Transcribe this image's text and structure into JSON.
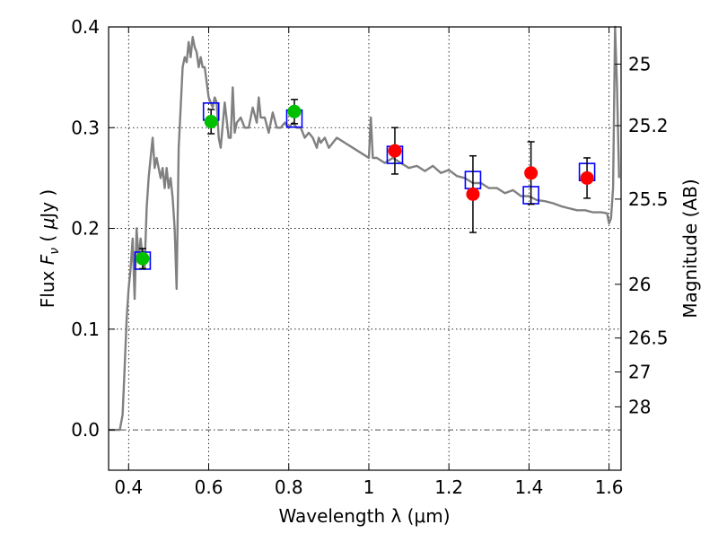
{
  "chart_data": {
    "type": "scatter",
    "xlabel": "Wavelength  λ (μm)",
    "ylabel": "Flux  F_ν  ( μJy )",
    "ylabel_parts": {
      "prefix": "Flux ",
      "var": "F",
      "sub": "ν",
      "mid": "  ( ",
      "mu": "μ",
      "suffix": "Jy )"
    },
    "y2label": "Magnitude (AB)",
    "xlim": [
      0.35,
      1.63
    ],
    "ylim": [
      -0.04,
      0.4
    ],
    "xticks": [
      0.4,
      0.6,
      0.8,
      1.0,
      1.2,
      1.4,
      1.6
    ],
    "xtick_labels": [
      "0.4",
      "0.6",
      "0.8",
      "1",
      "1.2",
      "1.4",
      "1.6"
    ],
    "yticks": [
      0.0,
      0.1,
      0.2,
      0.3,
      0.4
    ],
    "ytick_labels": [
      "0.0",
      "0.1",
      "0.2",
      "0.3",
      "0.4"
    ],
    "mag_ticks": [
      25,
      25.2,
      25.5,
      26,
      26.5,
      27,
      28
    ],
    "mag_tick_labels": [
      "25",
      "25.2",
      "25.5",
      "26",
      "26.5",
      "27",
      "28"
    ],
    "grid": true,
    "zero_line": true,
    "colors": {
      "model": "#808080",
      "green": "#00c000",
      "red": "#ff0000",
      "square": "#0000ff",
      "errorbar": "#000000"
    },
    "series": [
      {
        "marker": "square",
        "color": "#0000ff",
        "x": [
          0.435,
          0.606,
          0.814,
          1.065,
          1.26,
          1.405,
          1.545
        ],
        "y": [
          0.168,
          0.316,
          0.309,
          0.273,
          0.248,
          0.233,
          0.256
        ]
      },
      {
        "marker": "circle",
        "color": "#00c000",
        "x": [
          0.435,
          0.606,
          0.814
        ],
        "y": [
          0.17,
          0.306,
          0.316
        ],
        "yerr": [
          0.01,
          0.012,
          0.012
        ]
      },
      {
        "marker": "circle",
        "color": "#ff0000",
        "x": [
          1.065,
          1.26,
          1.405,
          1.545
        ],
        "y": [
          0.277,
          0.234,
          0.255,
          0.25
        ],
        "yerr": [
          0.023,
          0.038,
          0.031,
          0.02
        ]
      },
      {
        "type": "line",
        "color": "#808080",
        "x": [
          0.35,
          0.378,
          0.385,
          0.39,
          0.395,
          0.4,
          0.405,
          0.41,
          0.415,
          0.42,
          0.425,
          0.43,
          0.435,
          0.44,
          0.445,
          0.45,
          0.455,
          0.46,
          0.465,
          0.47,
          0.48,
          0.485,
          0.49,
          0.495,
          0.5,
          0.505,
          0.51,
          0.515,
          0.52,
          0.525,
          0.535,
          0.54,
          0.545,
          0.55,
          0.555,
          0.56,
          0.565,
          0.57,
          0.575,
          0.58,
          0.585,
          0.59,
          0.6,
          0.61,
          0.615,
          0.62,
          0.625,
          0.63,
          0.64,
          0.65,
          0.655,
          0.66,
          0.665,
          0.67,
          0.68,
          0.69,
          0.7,
          0.71,
          0.72,
          0.725,
          0.73,
          0.74,
          0.75,
          0.76,
          0.77,
          0.78,
          0.79,
          0.8,
          0.81,
          0.82,
          0.83,
          0.84,
          0.85,
          0.86,
          0.87,
          0.875,
          0.88,
          0.89,
          0.9,
          0.92,
          0.94,
          0.96,
          0.98,
          1.0,
          1.005,
          1.01,
          1.02,
          1.04,
          1.06,
          1.08,
          1.1,
          1.12,
          1.14,
          1.16,
          1.18,
          1.2,
          1.22,
          1.24,
          1.26,
          1.28,
          1.3,
          1.32,
          1.34,
          1.36,
          1.38,
          1.4,
          1.42,
          1.44,
          1.46,
          1.48,
          1.5,
          1.52,
          1.54,
          1.56,
          1.58,
          1.595,
          1.6,
          1.605,
          1.61,
          1.615,
          1.62,
          1.625
        ],
        "y": [
          0.0,
          0.0,
          0.015,
          0.06,
          0.11,
          0.14,
          0.16,
          0.19,
          0.13,
          0.2,
          0.17,
          0.19,
          0.17,
          0.16,
          0.22,
          0.25,
          0.27,
          0.29,
          0.26,
          0.27,
          0.25,
          0.26,
          0.24,
          0.26,
          0.24,
          0.25,
          0.23,
          0.2,
          0.14,
          0.28,
          0.36,
          0.37,
          0.365,
          0.385,
          0.37,
          0.39,
          0.38,
          0.375,
          0.36,
          0.37,
          0.36,
          0.36,
          0.33,
          0.32,
          0.33,
          0.325,
          0.29,
          0.28,
          0.325,
          0.29,
          0.29,
          0.34,
          0.295,
          0.305,
          0.31,
          0.3,
          0.3,
          0.32,
          0.305,
          0.33,
          0.31,
          0.31,
          0.295,
          0.315,
          0.3,
          0.3,
          0.305,
          0.3,
          0.305,
          0.3,
          0.3,
          0.29,
          0.295,
          0.29,
          0.28,
          0.29,
          0.285,
          0.29,
          0.28,
          0.29,
          0.285,
          0.28,
          0.275,
          0.27,
          0.31,
          0.27,
          0.27,
          0.265,
          0.27,
          0.265,
          0.26,
          0.262,
          0.257,
          0.262,
          0.255,
          0.258,
          0.252,
          0.25,
          0.245,
          0.245,
          0.24,
          0.24,
          0.235,
          0.238,
          0.232,
          0.232,
          0.228,
          0.227,
          0.225,
          0.222,
          0.22,
          0.218,
          0.218,
          0.216,
          0.216,
          0.215,
          0.205,
          0.21,
          0.24,
          0.4,
          0.34,
          0.25
        ]
      }
    ]
  }
}
